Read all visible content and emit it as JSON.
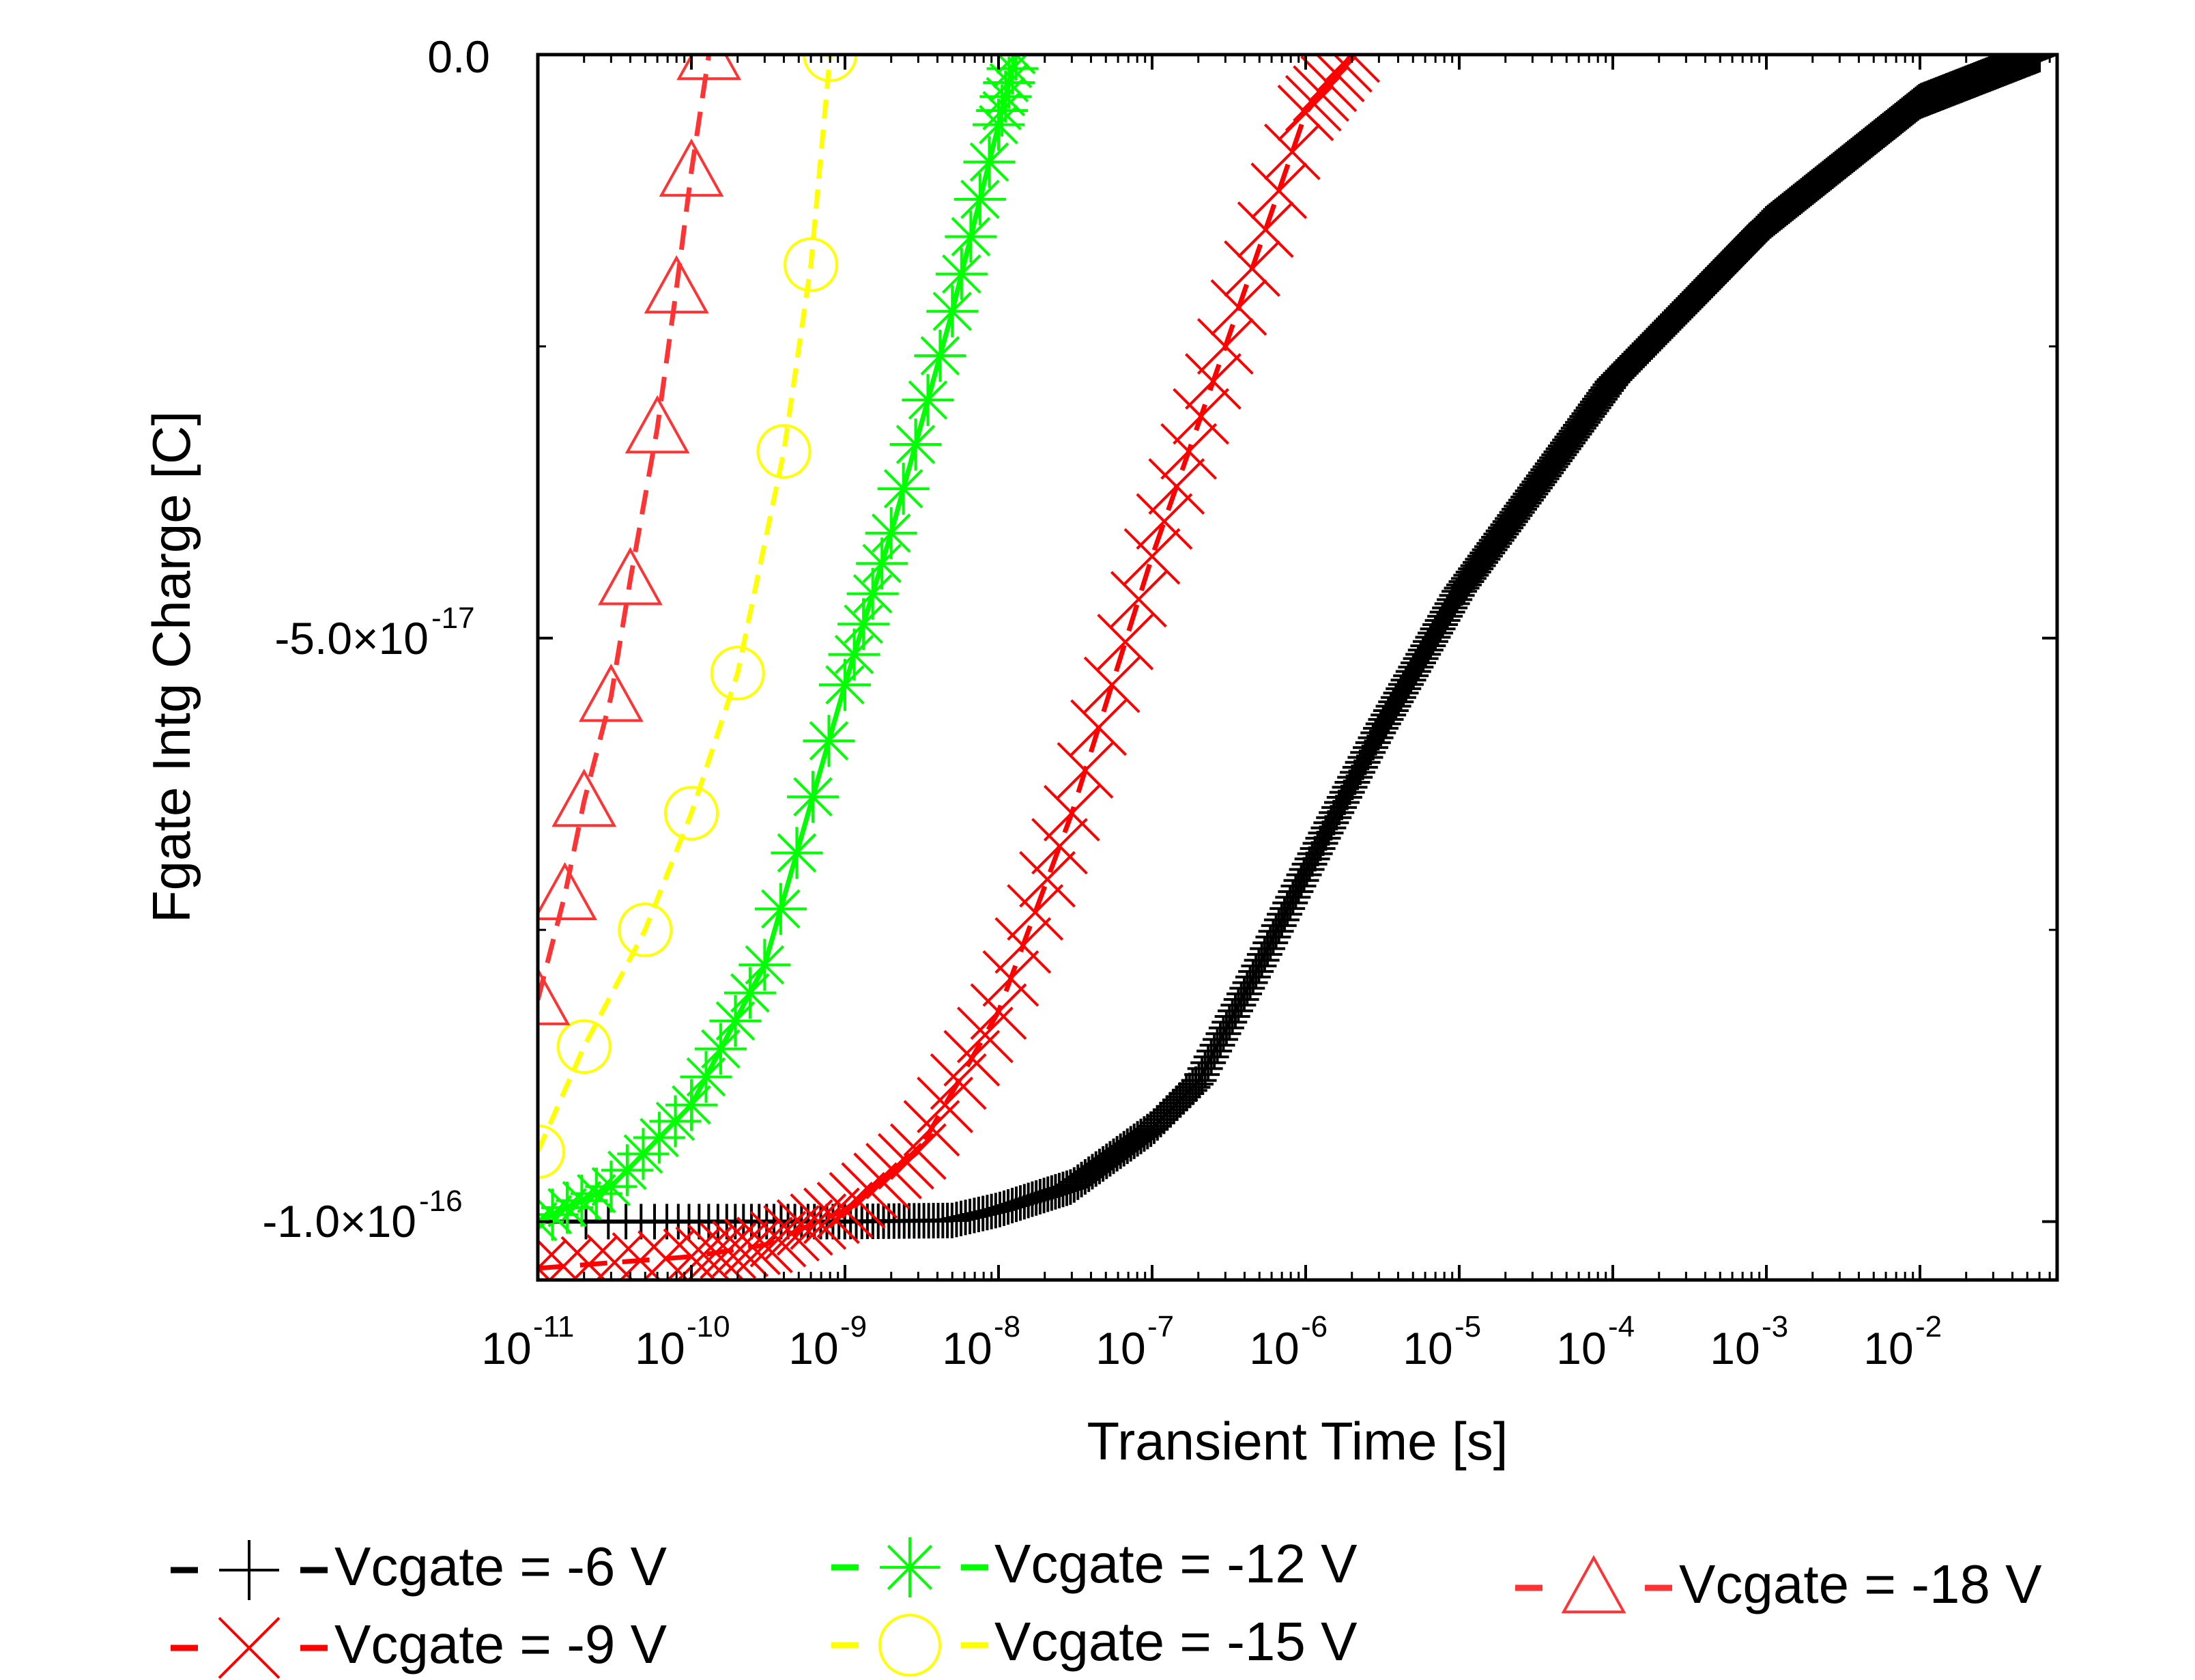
{
  "chart_data": {
    "type": "line",
    "title": "",
    "xlabel": "Transient Time [s]",
    "ylabel": "Fgate Intg Charge [C]",
    "x_scale": "log",
    "xlim": [
      1e-11,
      0.06
    ],
    "ylim": [
      -1.05e-16,
      0.0
    ],
    "x_tick_labels": [
      {
        "base": "10",
        "exp": "-11",
        "value": 1e-11
      },
      {
        "base": "10",
        "exp": "-10",
        "value": 1e-10
      },
      {
        "base": "10",
        "exp": "-9",
        "value": 1e-09
      },
      {
        "base": "10",
        "exp": "-8",
        "value": 1e-08
      },
      {
        "base": "10",
        "exp": "-7",
        "value": 1e-07
      },
      {
        "base": "10",
        "exp": "-6",
        "value": 1e-06
      },
      {
        "base": "10",
        "exp": "-5",
        "value": 1e-05
      },
      {
        "base": "10",
        "exp": "-4",
        "value": 0.0001
      },
      {
        "base": "10",
        "exp": "-3",
        "value": 0.001
      },
      {
        "base": "10",
        "exp": "-2",
        "value": 0.01
      }
    ],
    "y_tick_labels": [
      {
        "main": "0.0",
        "exp": "",
        "value": 0.0
      },
      {
        "main": "-5.0×10",
        "exp": "-17",
        "value": -5e-17
      },
      {
        "main": "-1.0×10",
        "exp": "-16",
        "value": -1e-16
      }
    ],
    "y_minor_ticks": [
      -2.5e-17,
      -7.5e-17
    ],
    "grid": false,
    "legend_position": "bottom",
    "series": [
      {
        "name": "Vcgate = -6 V",
        "color": "#000000",
        "marker": "plus",
        "x": [
          1e-11,
          1e-10,
          1e-09,
          5e-09,
          1e-08,
          3e-08,
          1e-07,
          2e-07,
          5e-07,
          1e-06,
          3e-06,
          1e-05,
          0.0001,
          0.001,
          0.01,
          0.06
        ],
        "y": [
          -1e-16,
          -1e-16,
          -1e-16,
          -9.99e-17,
          -9.9e-17,
          -9.7e-17,
          -9.2e-17,
          -8.8e-17,
          -7.8e-17,
          -7e-17,
          -5.8e-17,
          -4.6e-17,
          -2.8e-17,
          -1.45e-17,
          -4e-18,
          0.0
        ]
      },
      {
        "name": "Vcgate = -9 V",
        "color": "#ff0000",
        "marker": "x",
        "x": [
          1e-11,
          1e-10,
          3e-10,
          1e-09,
          3e-09,
          1e-08,
          3e-08,
          1e-07,
          3e-07,
          1e-06,
          2e-06
        ],
        "y": [
          -1.04e-16,
          -1.03e-16,
          -1.02e-16,
          -9.9e-17,
          -9.4e-17,
          -8.2e-17,
          -6.5e-17,
          -4.3e-17,
          -2.5e-17,
          -5e-18,
          0.0
        ]
      },
      {
        "name": "Vcgate = -12 V",
        "color": "#00ff00",
        "marker": "asterisk",
        "x": [
          1e-11,
          3e-11,
          1e-10,
          3e-10,
          1e-09,
          2e-09,
          5e-09,
          1e-08,
          1.3e-08
        ],
        "y": [
          -1e-16,
          -9.7e-17,
          -9e-17,
          -7.8e-17,
          -5.4e-17,
          -4.1e-17,
          -2.2e-17,
          -6e-18,
          0.0
        ]
      },
      {
        "name": "Vcgate = -15 V",
        "color": "#ffff00",
        "marker": "circle",
        "x": [
          1e-11,
          2e-11,
          5e-11,
          1e-10,
          2e-10,
          4e-10,
          6e-10,
          8e-10
        ],
        "y": [
          -9.4e-17,
          -8.5e-17,
          -7.5e-17,
          -6.5e-17,
          -5.3e-17,
          -3.4e-17,
          -1.8e-17,
          0.0
        ]
      },
      {
        "name": "Vcgate = -18 V",
        "color": "#ff3333",
        "marker": "triangle",
        "x": [
          1e-11,
          1.5e-11,
          2e-11,
          3e-11,
          4e-11,
          6e-11,
          8e-11,
          1e-10,
          1.3e-10
        ],
        "y": [
          -8.1e-17,
          -7.2e-17,
          -6.4e-17,
          -5.5e-17,
          -4.5e-17,
          -3.2e-17,
          -2e-17,
          -1e-17,
          0.0
        ]
      }
    ]
  }
}
